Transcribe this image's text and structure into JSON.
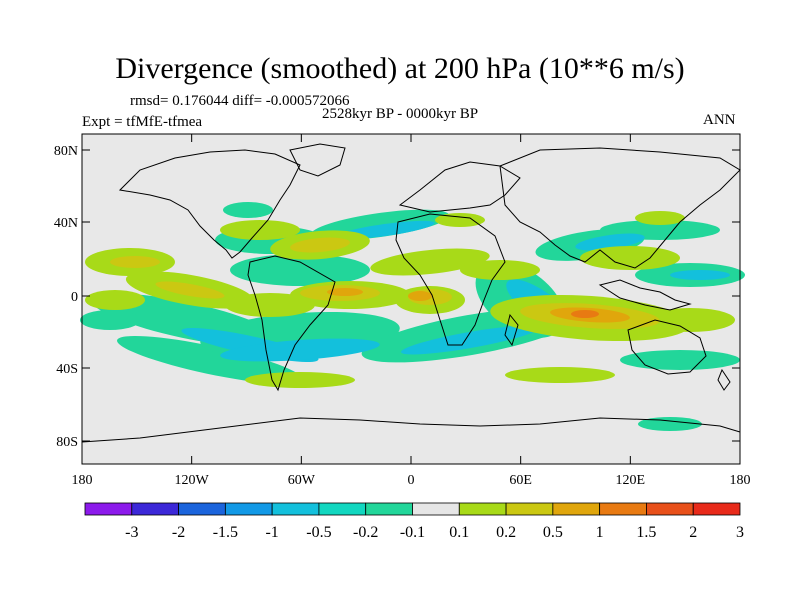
{
  "title": "Divergence (smoothed) at 200 hPa (10**6 m/s)",
  "stats": "rmsd= 0.176044 diff= -0.000572066",
  "period": "2528kyr BP - 0000kyr BP",
  "expt": "Expt = tfMfE-tfmea",
  "season": "ANN",
  "axes": {
    "lat_labels": [
      "80N",
      "40N",
      "0",
      "40S",
      "80S"
    ],
    "lon_labels": [
      "180",
      "120W",
      "60W",
      "0",
      "60E",
      "120E",
      "180"
    ]
  },
  "colorbar": {
    "labels": [
      "-3",
      "-2",
      "-1.5",
      "-1",
      "-0.5",
      "-0.2",
      "-0.1",
      "0.1",
      "0.2",
      "0.5",
      "1",
      "1.5",
      "2",
      "3"
    ],
    "colors": [
      "#8c1aeb",
      "#3c28d8",
      "#1b64dc",
      "#1299e6",
      "#13c0dc",
      "#12d7c0",
      "#22d69a",
      "#e6e6e6",
      "#a8da18",
      "#cbc812",
      "#e0a60c",
      "#e87a12",
      "#e8501a",
      "#e82a1a"
    ]
  },
  "colors": {
    "background": "#e8e8e8",
    "ocean_frame": "#000000",
    "coast": "#000000",
    "pos_low": "#a8da18",
    "pos_mid": "#cbc812",
    "pos_high": "#e0a60c",
    "pos_strong": "#e87a12",
    "neg_low": "#22d69a",
    "neg_mid": "#13c0dc",
    "neg_high": "#1299e6"
  }
}
